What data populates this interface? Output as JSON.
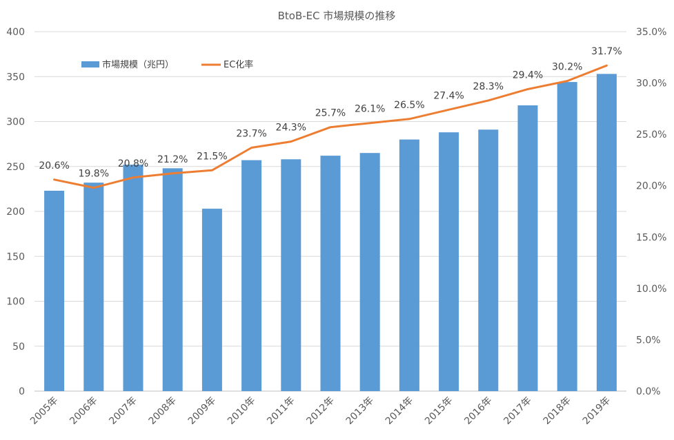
{
  "chart_data": {
    "type": "bar",
    "title": "BtoB-EC 市場規模の推移",
    "categories": [
      "2005年",
      "2006年",
      "2007年",
      "2008年",
      "2009年",
      "2010年",
      "2011年",
      "2012年",
      "2013年",
      "2014年",
      "2015年",
      "2016年",
      "2017年",
      "2018年",
      "2019年"
    ],
    "series": [
      {
        "name": "市場規模（兆円）",
        "type": "bar",
        "axis": "left",
        "color": "#5B9BD5",
        "values": [
          223,
          232,
          252,
          248,
          203,
          257,
          258,
          262,
          265,
          280,
          288,
          291,
          318,
          344,
          353
        ]
      },
      {
        "name": "EC化率",
        "type": "line",
        "axis": "right",
        "color": "#ED7D31",
        "values": [
          20.6,
          19.8,
          20.8,
          21.2,
          21.5,
          23.7,
          24.3,
          25.7,
          26.1,
          26.5,
          27.4,
          28.3,
          29.4,
          30.2,
          31.7
        ],
        "labels": [
          "20.6%",
          "19.8%",
          "20.8%",
          "21.2%",
          "21.5%",
          "23.7%",
          "24.3%",
          "25.7%",
          "26.1%",
          "26.5%",
          "27.4%",
          "28.3%",
          "29.4%",
          "30.2%",
          "31.7%"
        ]
      }
    ],
    "y_left": {
      "ylim": [
        0,
        400
      ],
      "ticks": [
        "0",
        "50",
        "100",
        "150",
        "200",
        "250",
        "300",
        "350",
        "400"
      ]
    },
    "y_right": {
      "ylim": [
        0,
        35
      ],
      "ticks": [
        "0.0%",
        "5.0%",
        "10.0%",
        "15.0%",
        "20.0%",
        "25.0%",
        "30.0%",
        "35.0%"
      ]
    },
    "grid": true,
    "legend_position": "top-left"
  }
}
